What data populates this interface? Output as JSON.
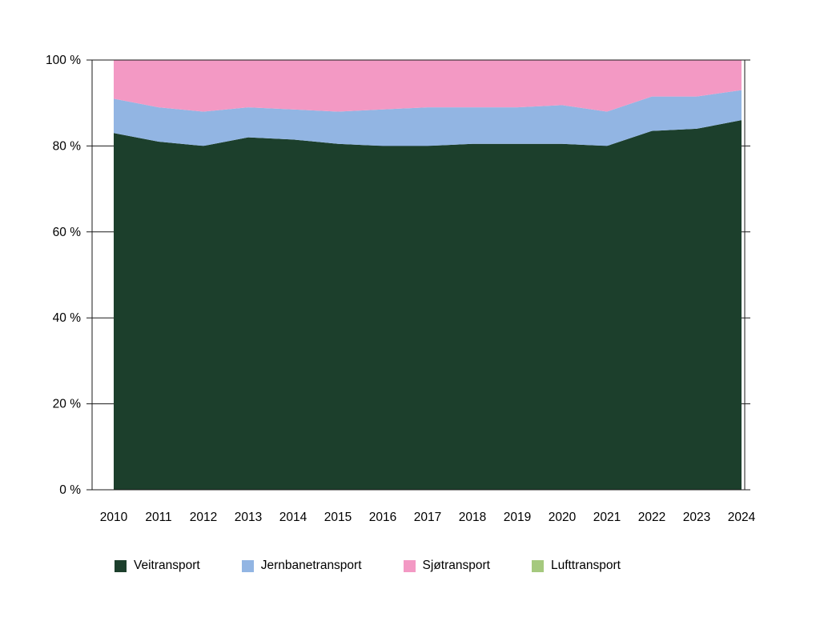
{
  "chart_data": {
    "type": "area",
    "stacked": true,
    "percent": true,
    "title": "",
    "xlabel": "",
    "ylabel": "",
    "grid": true,
    "legend_position": "bottom",
    "axis_color": "#1a1a1a",
    "text_color": "#000000",
    "ylim": [
      0,
      100
    ],
    "yticks": [
      {
        "value": 0,
        "label": "0 %"
      },
      {
        "value": 20,
        "label": "20 %"
      },
      {
        "value": 40,
        "label": "40 %"
      },
      {
        "value": 60,
        "label": "60 %"
      },
      {
        "value": 80,
        "label": "80 %"
      },
      {
        "value": 100,
        "label": "100 %"
      }
    ],
    "x": [
      "2010",
      "2011",
      "2012",
      "2013",
      "2014",
      "2015",
      "2016",
      "2017",
      "2018",
      "2019",
      "2020",
      "2021",
      "2022",
      "2023",
      "2024"
    ],
    "series": [
      {
        "name": "Veitransport",
        "color": "#1c3f2c",
        "values": [
          83,
          81,
          80,
          82,
          81.5,
          80.5,
          80,
          80,
          80.5,
          80.5,
          80.5,
          80,
          83.5,
          84,
          86
        ]
      },
      {
        "name": "Jernbanetransport",
        "color": "#92b5e3",
        "values": [
          8,
          8,
          8,
          7,
          7,
          7.5,
          8.5,
          9,
          8.5,
          8.5,
          9,
          8,
          8,
          7.5,
          7
        ]
      },
      {
        "name": "Sjøtransport",
        "color": "#f399c4",
        "values": [
          9,
          11,
          12,
          11,
          11.5,
          12,
          11.5,
          11,
          11,
          11,
          10.5,
          12,
          8.5,
          8.5,
          7
        ]
      },
      {
        "name": "Lufttransport",
        "color": "#a5c97e",
        "values": [
          0,
          0,
          0,
          0,
          0,
          0,
          0,
          0,
          0,
          0,
          0,
          0,
          0,
          0,
          0
        ]
      }
    ]
  }
}
